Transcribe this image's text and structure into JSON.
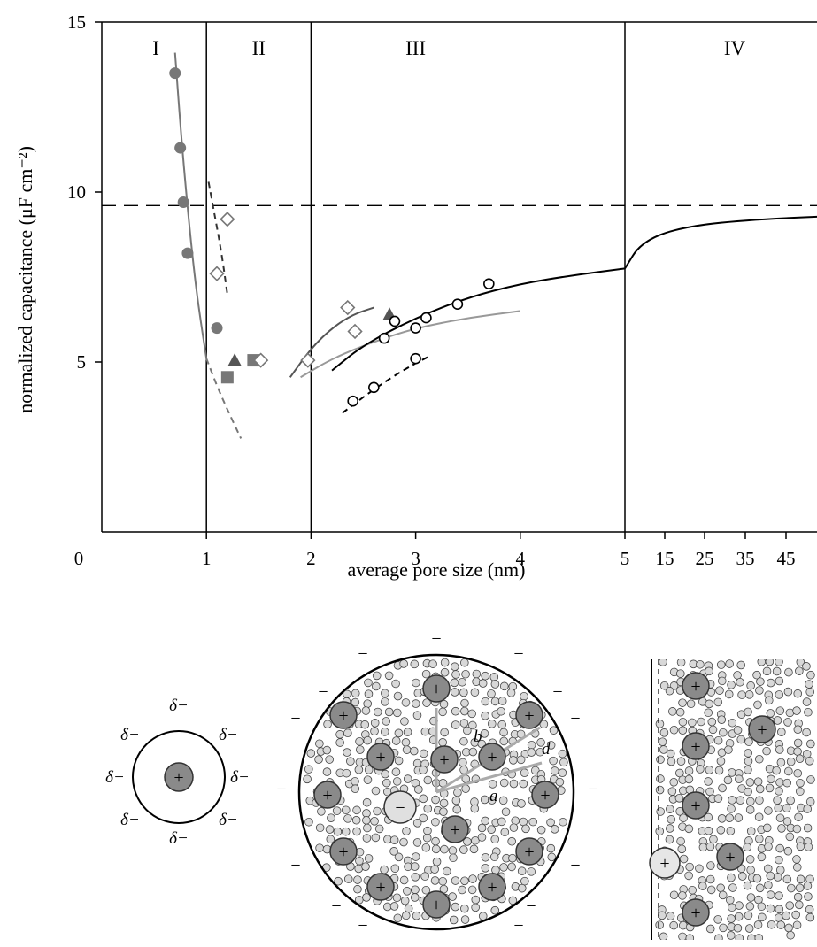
{
  "chart_data": {
    "type": "scatter",
    "title": "",
    "xlabel": "average pore size (nm)",
    "ylabel": "normalized capacitance (μF cm⁻²)",
    "ylim": [
      0,
      15
    ],
    "y_ticks": [
      "5",
      "10",
      "15"
    ],
    "x_ticks": [
      "0",
      "1",
      "2",
      "3",
      "4",
      "5",
      "15",
      "25",
      "35",
      "45"
    ],
    "x_scale": "piecewise: linear 0-5 nm, then 15-45 nm compressed",
    "reference_line_y": 9.6,
    "region_boundaries": [
      1,
      2,
      5
    ],
    "regions": [
      "I",
      "II",
      "III",
      "IV"
    ],
    "series": [
      {
        "marker": "filled-circle",
        "color": "#777777",
        "points": [
          [
            0.7,
            13.5
          ],
          [
            0.75,
            11.3
          ],
          [
            0.78,
            9.7
          ],
          [
            0.82,
            8.2
          ],
          [
            1.1,
            6.0
          ]
        ]
      },
      {
        "marker": "filled-square",
        "color": "#777777",
        "points": [
          [
            1.2,
            4.55
          ],
          [
            1.45,
            5.05
          ]
        ]
      },
      {
        "marker": "filled-triangle",
        "color": "#555555",
        "points": [
          [
            1.27,
            5.05
          ],
          [
            2.75,
            6.4
          ]
        ]
      },
      {
        "marker": "open-diamond",
        "color": "#777777",
        "points": [
          [
            1.1,
            7.6
          ],
          [
            1.2,
            9.2
          ],
          [
            1.52,
            5.05
          ],
          [
            1.97,
            5.05
          ],
          [
            2.35,
            6.6
          ],
          [
            2.42,
            5.9
          ]
        ]
      },
      {
        "marker": "open-circle",
        "color": "#000000",
        "points": [
          [
            2.7,
            5.7
          ],
          [
            2.8,
            6.2
          ],
          [
            3.0,
            6.0
          ],
          [
            3.1,
            6.3
          ],
          [
            3.4,
            6.7
          ],
          [
            3.7,
            7.3
          ]
        ]
      },
      {
        "marker": "open-circle-dashed-fit",
        "color": "#000000",
        "points": [
          [
            2.4,
            3.85
          ],
          [
            2.6,
            4.25
          ],
          [
            3.0,
            5.1
          ]
        ]
      }
    ],
    "fit_curves": [
      {
        "style": "solid",
        "color": "#777777",
        "points": [
          [
            0.7,
            14.1
          ],
          [
            0.75,
            12.0
          ],
          [
            0.8,
            10.2
          ],
          [
            0.85,
            8.6
          ],
          [
            0.9,
            7.2
          ],
          [
            0.95,
            6.1
          ],
          [
            1.0,
            5.1
          ]
        ]
      },
      {
        "style": "dashed",
        "color": "#777777",
        "points": [
          [
            1.0,
            5.1
          ],
          [
            1.1,
            4.3
          ],
          [
            1.2,
            3.6
          ],
          [
            1.33,
            2.75
          ]
        ]
      },
      {
        "style": "dashed",
        "color": "#333333",
        "points": [
          [
            1.02,
            10.3
          ],
          [
            1.08,
            9.3
          ],
          [
            1.14,
            8.3
          ],
          [
            1.2,
            7.0
          ]
        ]
      },
      {
        "style": "solid",
        "color": "#555555",
        "points": [
          [
            1.8,
            4.55
          ],
          [
            2.0,
            5.4
          ],
          [
            2.2,
            6.0
          ],
          [
            2.4,
            6.4
          ],
          [
            2.6,
            6.6
          ]
        ]
      },
      {
        "style": "solid",
        "color": "#999999",
        "points": [
          [
            1.9,
            4.55
          ],
          [
            2.2,
            5.1
          ],
          [
            2.6,
            5.6
          ],
          [
            3.0,
            6.0
          ],
          [
            3.5,
            6.3
          ],
          [
            4.0,
            6.5
          ]
        ]
      },
      {
        "style": "solid",
        "color": "#000000",
        "points": [
          [
            2.2,
            4.75
          ],
          [
            2.5,
            5.5
          ],
          [
            3.0,
            6.3
          ],
          [
            3.5,
            6.9
          ],
          [
            4.0,
            7.3
          ],
          [
            4.5,
            7.55
          ],
          [
            5.0,
            7.75
          ]
        ]
      },
      {
        "style": "dashed",
        "color": "#000000",
        "points": [
          [
            2.3,
            3.5
          ],
          [
            2.6,
            4.2
          ],
          [
            2.9,
            4.8
          ],
          [
            3.15,
            5.2
          ]
        ]
      },
      {
        "style": "solid",
        "color": "#000000",
        "points": [
          [
            5.0,
            7.75
          ],
          [
            5.15,
            8.5
          ],
          [
            5.5,
            8.95
          ],
          [
            6.2,
            9.2
          ],
          [
            7.5,
            9.35
          ],
          [
            9.0,
            9.45
          ],
          [
            10.2,
            9.48
          ]
        ]
      }
    ]
  },
  "diagram": {
    "small_labels": [
      "δ−",
      "δ−",
      "δ−",
      "δ−",
      "δ−",
      "δ−",
      "δ−",
      "δ−"
    ],
    "plus": "+",
    "minus": "−",
    "dash": "−",
    "a": "a",
    "b": "b",
    "d": "d"
  }
}
